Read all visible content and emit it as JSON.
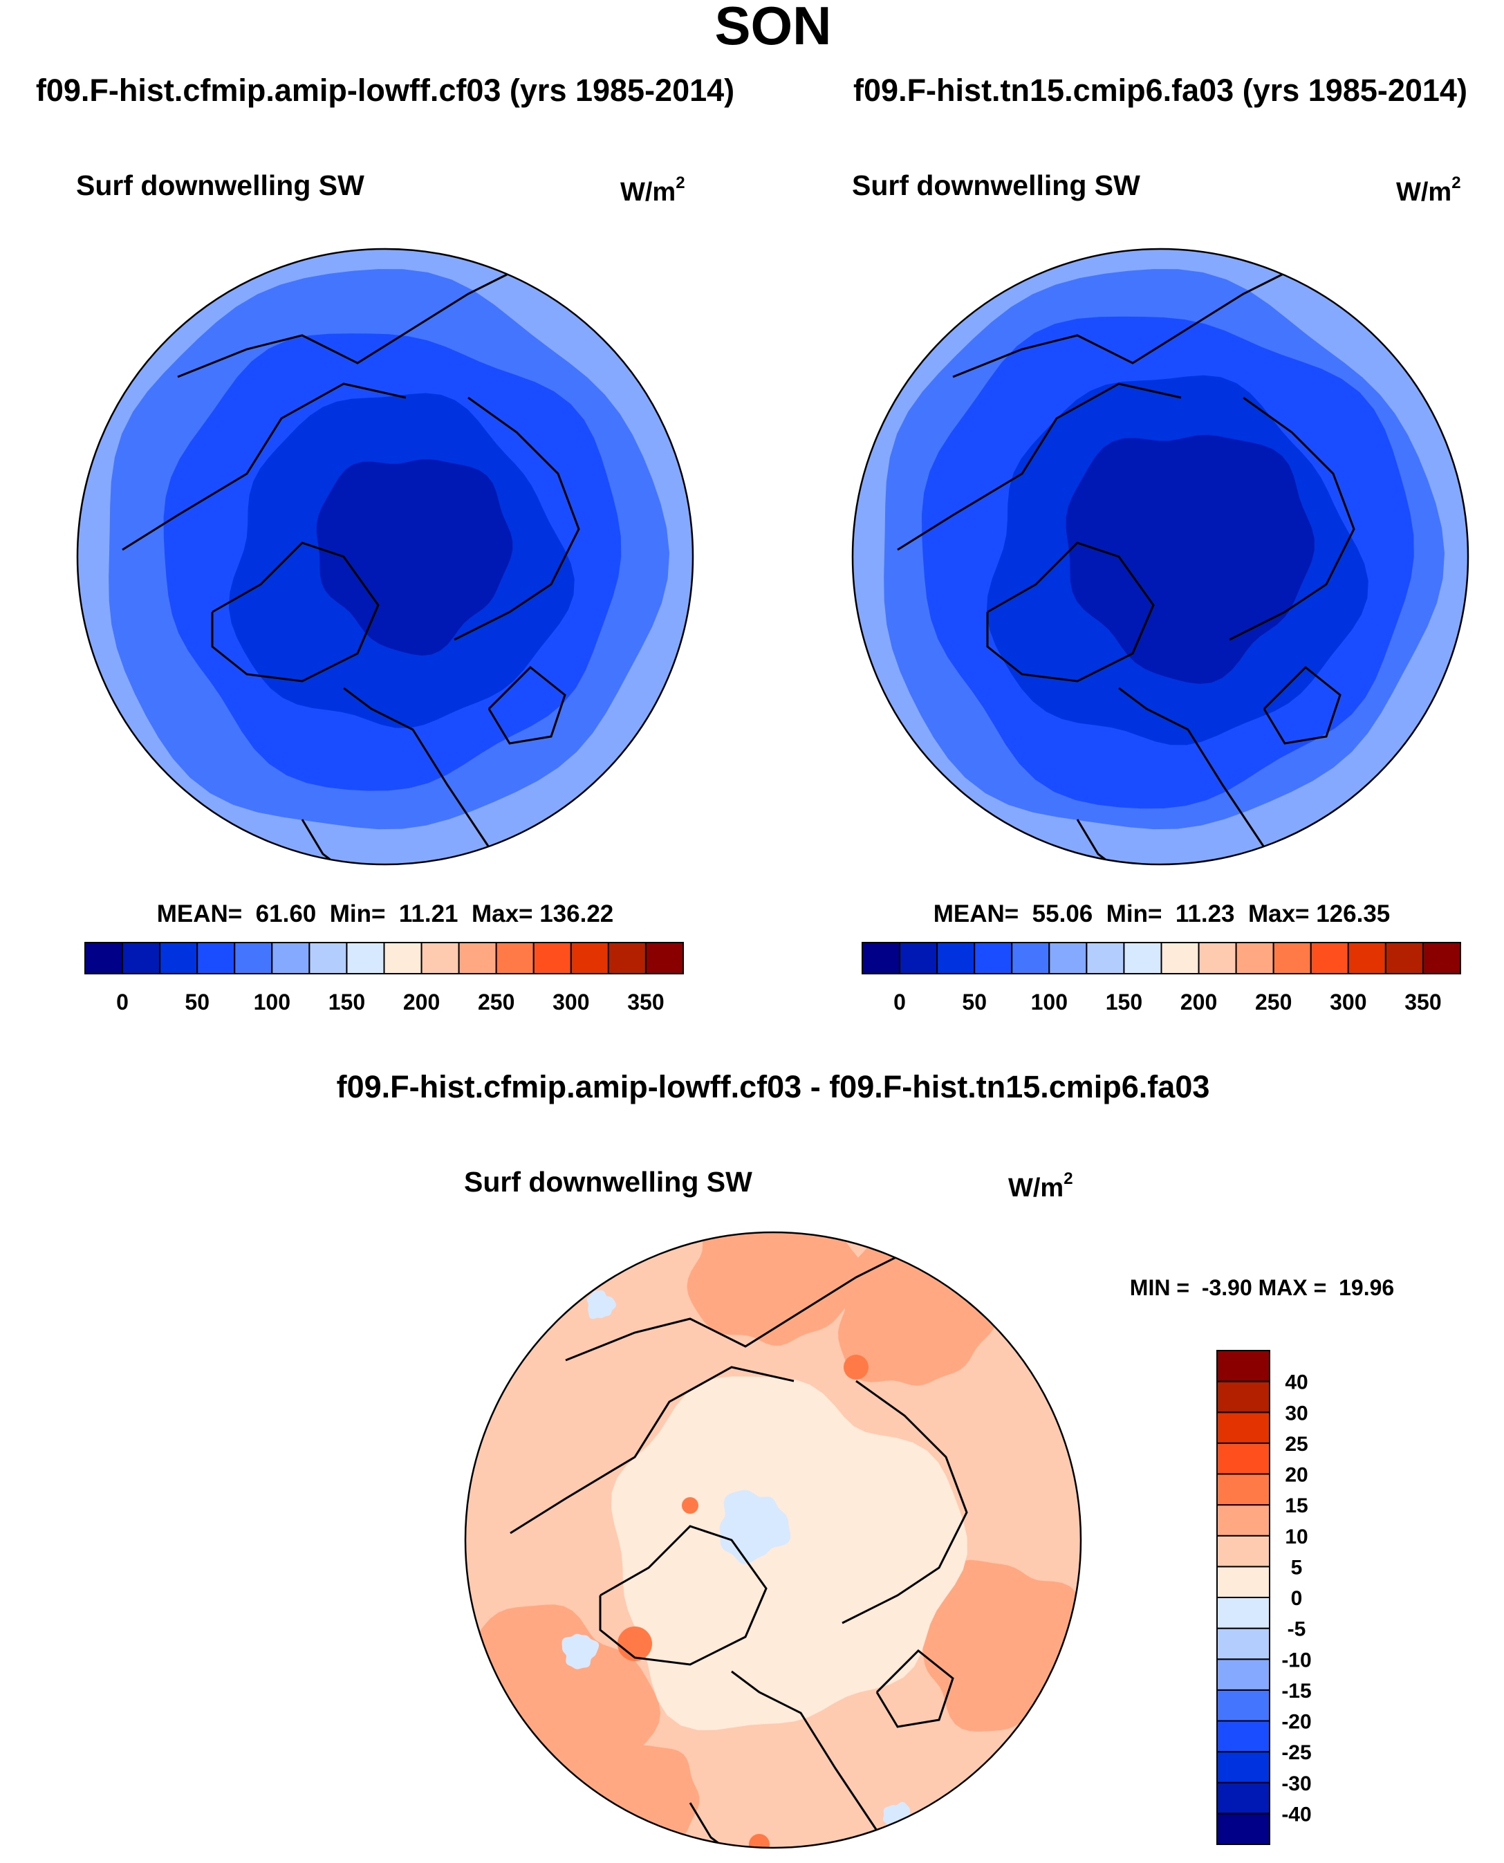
{
  "chart_data": {
    "type": "heatmap",
    "title": "SON",
    "panels": [
      {
        "case_title": "f09.F-hist.cfmip.amip-lowff.cf03 (yrs 1985-2014)",
        "variable": "Surf downwelling SW",
        "units_base": "W/m",
        "units_exp": "2",
        "stats_text": "MEAN=  61.60  Min=  11.21  Max= 136.22",
        "mean": 61.6,
        "min": 11.21,
        "max": 136.22,
        "levels": [
          0,
          25,
          50,
          75,
          100,
          125,
          150,
          175,
          200,
          225,
          250,
          275,
          300,
          325,
          350
        ],
        "tick_labels": [
          "0",
          "50",
          "100",
          "150",
          "200",
          "250",
          "300",
          "350"
        ],
        "projection": "north polar stereographic"
      },
      {
        "case_title": "f09.F-hist.tn15.cmip6.fa03 (yrs 1985-2014)",
        "variable": "Surf downwelling SW",
        "units_base": "W/m",
        "units_exp": "2",
        "stats_text": "MEAN=  55.06  Min=  11.23  Max= 126.35",
        "mean": 55.06,
        "min": 11.23,
        "max": 126.35,
        "levels": [
          0,
          25,
          50,
          75,
          100,
          125,
          150,
          175,
          200,
          225,
          250,
          275,
          300,
          325,
          350
        ],
        "tick_labels": [
          "0",
          "50",
          "100",
          "150",
          "200",
          "250",
          "300",
          "350"
        ],
        "projection": "north polar stereographic"
      },
      {
        "case_title": "f09.F-hist.cfmip.amip-lowff.cf03 - f09.F-hist.tn15.cmip6.fa03",
        "variable": "Surf downwelling SW",
        "units_base": "W/m",
        "units_exp": "2",
        "stats_text": "MIN =  -3.90 MAX =  19.96",
        "min": -3.9,
        "max": 19.96,
        "levels": [
          -40,
          -30,
          -25,
          -20,
          -15,
          -10,
          -5,
          0,
          5,
          10,
          15,
          20,
          25,
          30,
          40
        ],
        "tick_labels": [
          "-40",
          "-30",
          "-25",
          "-20",
          "-15",
          "-10",
          "-5",
          "0",
          "5",
          "10",
          "15",
          "20",
          "25",
          "30",
          "40"
        ],
        "projection": "north polar stereographic"
      }
    ],
    "colors": [
      "#000088",
      "#0019b4",
      "#0033e0",
      "#1a4dff",
      "#4375ff",
      "#85a9ff",
      "#b4cdff",
      "#d7e9ff",
      "#ffebd9",
      "#ffcbb0",
      "#ffa882",
      "#ff7a47",
      "#ff4f1c",
      "#e23300",
      "#b32000",
      "#8a0000"
    ]
  }
}
